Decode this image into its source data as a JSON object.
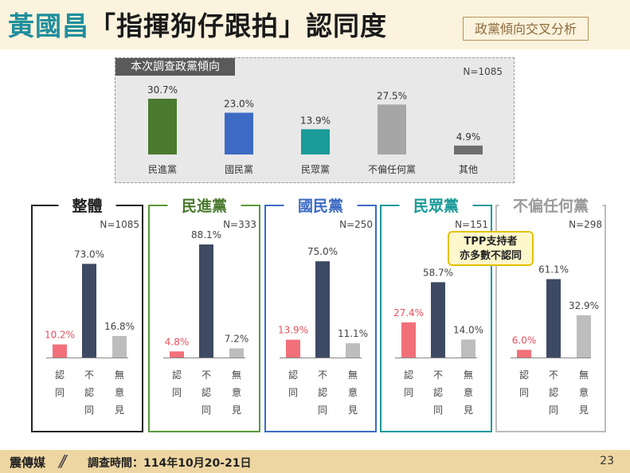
{
  "header": {
    "title_name": "黃國昌",
    "title_rest": "「指揮狗仔跟拍」認同度",
    "subtitle": "政黨傾向交叉分析"
  },
  "top_panel": {
    "label": "本次調查政黨傾向",
    "n_label": "N=1085"
  },
  "colors": {
    "dpp": "#4a7a2e",
    "kmt": "#3d6bc4",
    "tpp": "#1a9a98",
    "neutral": "#a6a6a6",
    "other": "#6e6e6e",
    "agree": "#f2707a",
    "disagree": "#3e4a63",
    "unknown": "#bdbdbd"
  },
  "callout": {
    "line1": "TPP支持者",
    "line2": "亦多數不認同"
  },
  "footer": {
    "brand": "震傳媒",
    "slash": "//",
    "date": "調查時間：114年10月20-21日",
    "page": "23"
  },
  "chart_data": [
    {
      "type": "bar",
      "title": "本次調查政黨傾向",
      "n_label": "N=1085",
      "categories": [
        "民進黨",
        "國民黨",
        "民眾黨",
        "不偏任何黨",
        "其他"
      ],
      "values": [
        30.7,
        23.0,
        13.9,
        27.5,
        4.9
      ],
      "value_labels": [
        "30.7%",
        "23.0%",
        "13.9%",
        "27.5%",
        "4.9%"
      ],
      "colors": [
        "#4a7a2e",
        "#3d6bc4",
        "#1a9a98",
        "#a6a6a6",
        "#6e6e6e"
      ]
    },
    {
      "type": "bar",
      "title": "整體",
      "n_label": "N=1085",
      "categories": [
        "認同",
        "不認同",
        "無意見"
      ],
      "values": [
        10.2,
        73.0,
        16.8
      ],
      "value_labels": [
        "10.2%",
        "73.0%",
        "16.8%"
      ]
    },
    {
      "type": "bar",
      "title": "民進黨",
      "n_label": "N=333",
      "categories": [
        "認同",
        "不認同",
        "無意見"
      ],
      "values": [
        4.8,
        88.1,
        7.2
      ],
      "value_labels": [
        "4.8%",
        "88.1%",
        "7.2%"
      ]
    },
    {
      "type": "bar",
      "title": "國民黨",
      "n_label": "N=250",
      "categories": [
        "認同",
        "不認同",
        "無意見"
      ],
      "values": [
        13.9,
        75.0,
        11.1
      ],
      "value_labels": [
        "13.9%",
        "75.0%",
        "11.1%"
      ]
    },
    {
      "type": "bar",
      "title": "民眾黨",
      "n_label": "N=151",
      "categories": [
        "認同",
        "不認同",
        "無意見"
      ],
      "values": [
        27.4,
        58.7,
        14.0
      ],
      "value_labels": [
        "27.4%",
        "58.7%",
        "14.0%"
      ]
    },
    {
      "type": "bar",
      "title": "不偏任何黨",
      "n_label": "N=298",
      "categories": [
        "認同",
        "不認同",
        "無意見"
      ],
      "values": [
        6.0,
        61.1,
        32.9
      ],
      "value_labels": [
        "6.0%",
        "61.1%",
        "32.9%"
      ]
    }
  ]
}
